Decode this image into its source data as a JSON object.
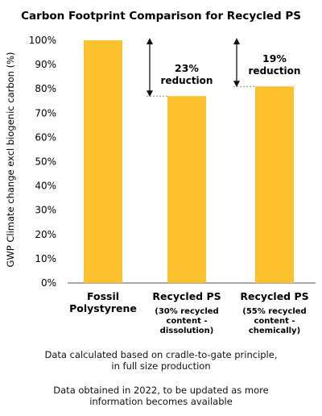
{
  "chart_data": {
    "type": "bar",
    "title": "Carbon Footprint Comparison for Recycled PS",
    "ylabel": "GWP Climate change excl biogenic carbon (%)",
    "xlabel": "",
    "ylim": [
      0,
      100
    ],
    "yticks": [
      "0%",
      "10%",
      "20%",
      "30%",
      "40%",
      "50%",
      "60%",
      "70%",
      "80%",
      "90%",
      "100%"
    ],
    "grid": false,
    "bar_color": "#FDC12E",
    "categories": [
      {
        "name_lines": [
          "Fossil",
          "Polystyrene"
        ],
        "sub_lines": []
      },
      {
        "name_lines": [
          "Recycled PS"
        ],
        "sub_lines": [
          "(30% recycled",
          "content -",
          "dissolution)"
        ]
      },
      {
        "name_lines": [
          "Recycled PS"
        ],
        "sub_lines": [
          "(55% recycled",
          "content -",
          "chemically)"
        ]
      }
    ],
    "values": [
      100,
      77,
      81
    ],
    "annotations": [
      {
        "bar_index": 1,
        "lines": [
          "23%",
          "reduction"
        ]
      },
      {
        "bar_index": 2,
        "lines": [
          "19%",
          "reduction"
        ]
      }
    ]
  },
  "footnotes": [
    {
      "lines": [
        "Data calculated based on cradle-to-gate principle,",
        "in full size production"
      ]
    },
    {
      "lines": [
        "Data obtained in 2022, to be updated as more",
        "information becomes available"
      ]
    }
  ]
}
